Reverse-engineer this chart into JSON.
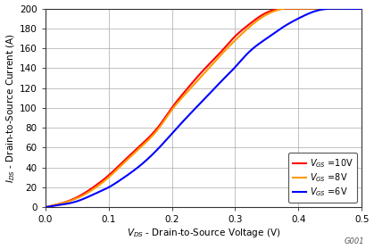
{
  "title": "",
  "xlabel": "$V_{DS}$ - Drain-to-Source Voltage (V)",
  "ylabel": "$I_{DS}$ - Drain-to-Source Current (A)",
  "xlim": [
    0,
    0.5
  ],
  "ylim": [
    0,
    200
  ],
  "xticks": [
    0,
    0.1,
    0.2,
    0.3,
    0.4,
    0.5
  ],
  "yticks": [
    0,
    20,
    40,
    60,
    80,
    100,
    120,
    140,
    160,
    180,
    200
  ],
  "legend_labels": [
    "$V_{GS}$ =10V",
    "$V_{GS}$ =8V",
    "$V_{GS}$ =6V"
  ],
  "line_colors": [
    "#ff0000",
    "#ff9900",
    "#0000ff"
  ],
  "background_color": "#ffffff",
  "grid_color": "#aaaaaa",
  "watermark": "G001",
  "curves": {
    "vgs10": {
      "x": [
        0.0,
        0.02,
        0.05,
        0.08,
        0.1,
        0.12,
        0.15,
        0.18,
        0.2,
        0.22,
        0.25,
        0.28,
        0.3,
        0.32,
        0.35,
        0.38,
        0.4,
        0.42
      ],
      "y": [
        0,
        3,
        10,
        22,
        32,
        44,
        62,
        82,
        100,
        116,
        138,
        158,
        172,
        183,
        196,
        200,
        200,
        200
      ]
    },
    "vgs8": {
      "x": [
        0.0,
        0.02,
        0.05,
        0.08,
        0.1,
        0.12,
        0.15,
        0.18,
        0.2,
        0.22,
        0.25,
        0.28,
        0.3,
        0.32,
        0.35,
        0.38,
        0.4,
        0.42,
        0.43
      ],
      "y": [
        0,
        3,
        9,
        20,
        30,
        42,
        60,
        80,
        98,
        113,
        134,
        155,
        168,
        180,
        194,
        200,
        200,
        200,
        200
      ]
    },
    "vgs6": {
      "x": [
        0.0,
        0.02,
        0.05,
        0.08,
        0.1,
        0.12,
        0.15,
        0.18,
        0.2,
        0.22,
        0.25,
        0.28,
        0.3,
        0.32,
        0.35,
        0.38,
        0.4,
        0.43,
        0.46,
        0.5
      ],
      "y": [
        0,
        2,
        6,
        14,
        20,
        28,
        42,
        60,
        74,
        88,
        108,
        128,
        141,
        155,
        170,
        183,
        190,
        198,
        200,
        200
      ]
    }
  }
}
